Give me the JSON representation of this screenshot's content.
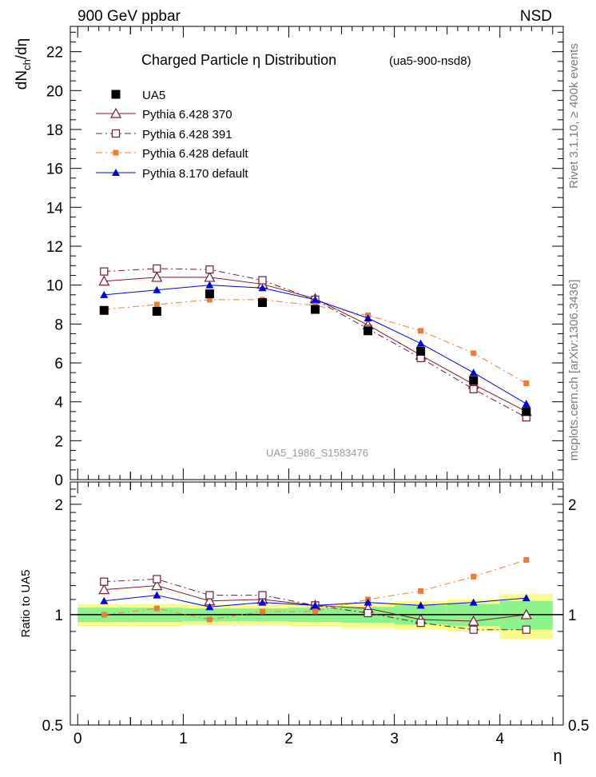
{
  "header": {
    "left": "900 GeV ppbar",
    "right": "NSD"
  },
  "side_labels": {
    "rivet": "Rivet 3.1.10, ≥ 400k events",
    "mcplots": "mcplots.cern.ch [arXiv:1306.3436]"
  },
  "colors": {
    "data": "#000000",
    "pythia6_370": "#7a1a2a",
    "pythia6_391": "#6a1a3a",
    "pythia6_default": "#f07c30",
    "pythia8_default": "#0000dd",
    "band_inner": "#8cf28c",
    "band_outer": "#fbfb8c"
  },
  "chart_data": [
    {
      "type": "line",
      "title": "Charged Particle  η Distribution",
      "subtitle": "(ua5-900-nsd8)",
      "ylabel": "dN_ch/dη",
      "ylabel_main": "dN",
      "ylabel_sub": "ch",
      "ylabel_tail": "/dη",
      "watermark": "UA5_1986_S1583476",
      "xlim": [
        -0.07,
        4.6
      ],
      "ylim": [
        0,
        23.3
      ],
      "y_ticks": [
        0,
        2,
        4,
        6,
        8,
        10,
        12,
        14,
        16,
        18,
        20,
        22
      ],
      "x": [
        0.25,
        0.75,
        1.25,
        1.75,
        2.25,
        2.75,
        3.25,
        3.75,
        4.25
      ],
      "series": [
        {
          "name": "UA5",
          "key": "data",
          "marker": "square-filled",
          "line": "none",
          "values": [
            8.7,
            8.65,
            9.55,
            9.1,
            8.75,
            7.65,
            6.6,
            5.1,
            3.5
          ]
        },
        {
          "name": "Pythia 6.428 370",
          "key": "pythia6_370",
          "marker": "triangle-open",
          "line": "solid",
          "values": [
            10.2,
            10.4,
            10.4,
            10.05,
            9.3,
            7.95,
            6.4,
            4.9,
            3.5
          ]
        },
        {
          "name": "Pythia 6.428 391",
          "key": "pythia6_391",
          "marker": "square-open",
          "line": "dashdot",
          "values": [
            10.7,
            10.85,
            10.8,
            10.25,
            9.25,
            7.75,
            6.25,
            4.65,
            3.2
          ]
        },
        {
          "name": "Pythia 6.428 default",
          "key": "pythia6_default",
          "marker": "square-small",
          "line": "dashdot",
          "values": [
            8.75,
            9.0,
            9.25,
            9.25,
            8.95,
            8.45,
            7.65,
            6.5,
            4.95
          ]
        },
        {
          "name": "Pythia 8.170 default",
          "key": "pythia8_default",
          "marker": "triangle-filled",
          "line": "solid",
          "values": [
            9.5,
            9.75,
            10.0,
            9.85,
            9.25,
            8.3,
            7.0,
            5.5,
            3.9
          ]
        }
      ]
    },
    {
      "type": "line",
      "title": "Ratio to UA5",
      "xlabel": "η",
      "ylabel": "Ratio to UA5",
      "ylim": [
        0.5,
        2.3
      ],
      "y_scale": "log",
      "y_ticks": [
        0.5,
        1,
        2
      ],
      "y_tick_labels": [
        "0.5",
        "1",
        "2"
      ],
      "xlim": [
        -0.07,
        4.6
      ],
      "x_ticks": [
        0,
        1,
        2,
        3,
        4
      ],
      "x_tick_labels": [
        "0",
        "1",
        "2",
        "3",
        "4"
      ],
      "x": [
        0.25,
        0.75,
        1.25,
        1.75,
        2.25,
        2.75,
        3.25,
        3.75,
        4.25
      ],
      "bands": {
        "edges": [
          0,
          0.5,
          1.0,
          1.5,
          2.0,
          2.5,
          3.0,
          3.5,
          4.0,
          4.5
        ],
        "inner": [
          0.045,
          0.045,
          0.04,
          0.04,
          0.045,
          0.05,
          0.06,
          0.07,
          0.09
        ],
        "outer": [
          0.07,
          0.07,
          0.065,
          0.065,
          0.07,
          0.08,
          0.09,
          0.1,
          0.14
        ]
      },
      "series": [
        {
          "name": "Pythia 6.428 370",
          "key": "pythia6_370",
          "values": [
            1.17,
            1.2,
            1.09,
            1.1,
            1.06,
            1.04,
            0.97,
            0.96,
            1.0
          ]
        },
        {
          "name": "Pythia 6.428 391",
          "key": "pythia6_391",
          "values": [
            1.23,
            1.25,
            1.13,
            1.13,
            1.06,
            1.01,
            0.95,
            0.91,
            0.91
          ]
        },
        {
          "name": "Pythia 6.428 default",
          "key": "pythia6_default",
          "values": [
            1.0,
            1.04,
            0.97,
            1.02,
            1.02,
            1.1,
            1.16,
            1.27,
            1.41
          ]
        },
        {
          "name": "Pythia 8.170 default",
          "key": "pythia8_default",
          "values": [
            1.09,
            1.13,
            1.05,
            1.08,
            1.06,
            1.08,
            1.06,
            1.08,
            1.11
          ]
        }
      ]
    }
  ]
}
